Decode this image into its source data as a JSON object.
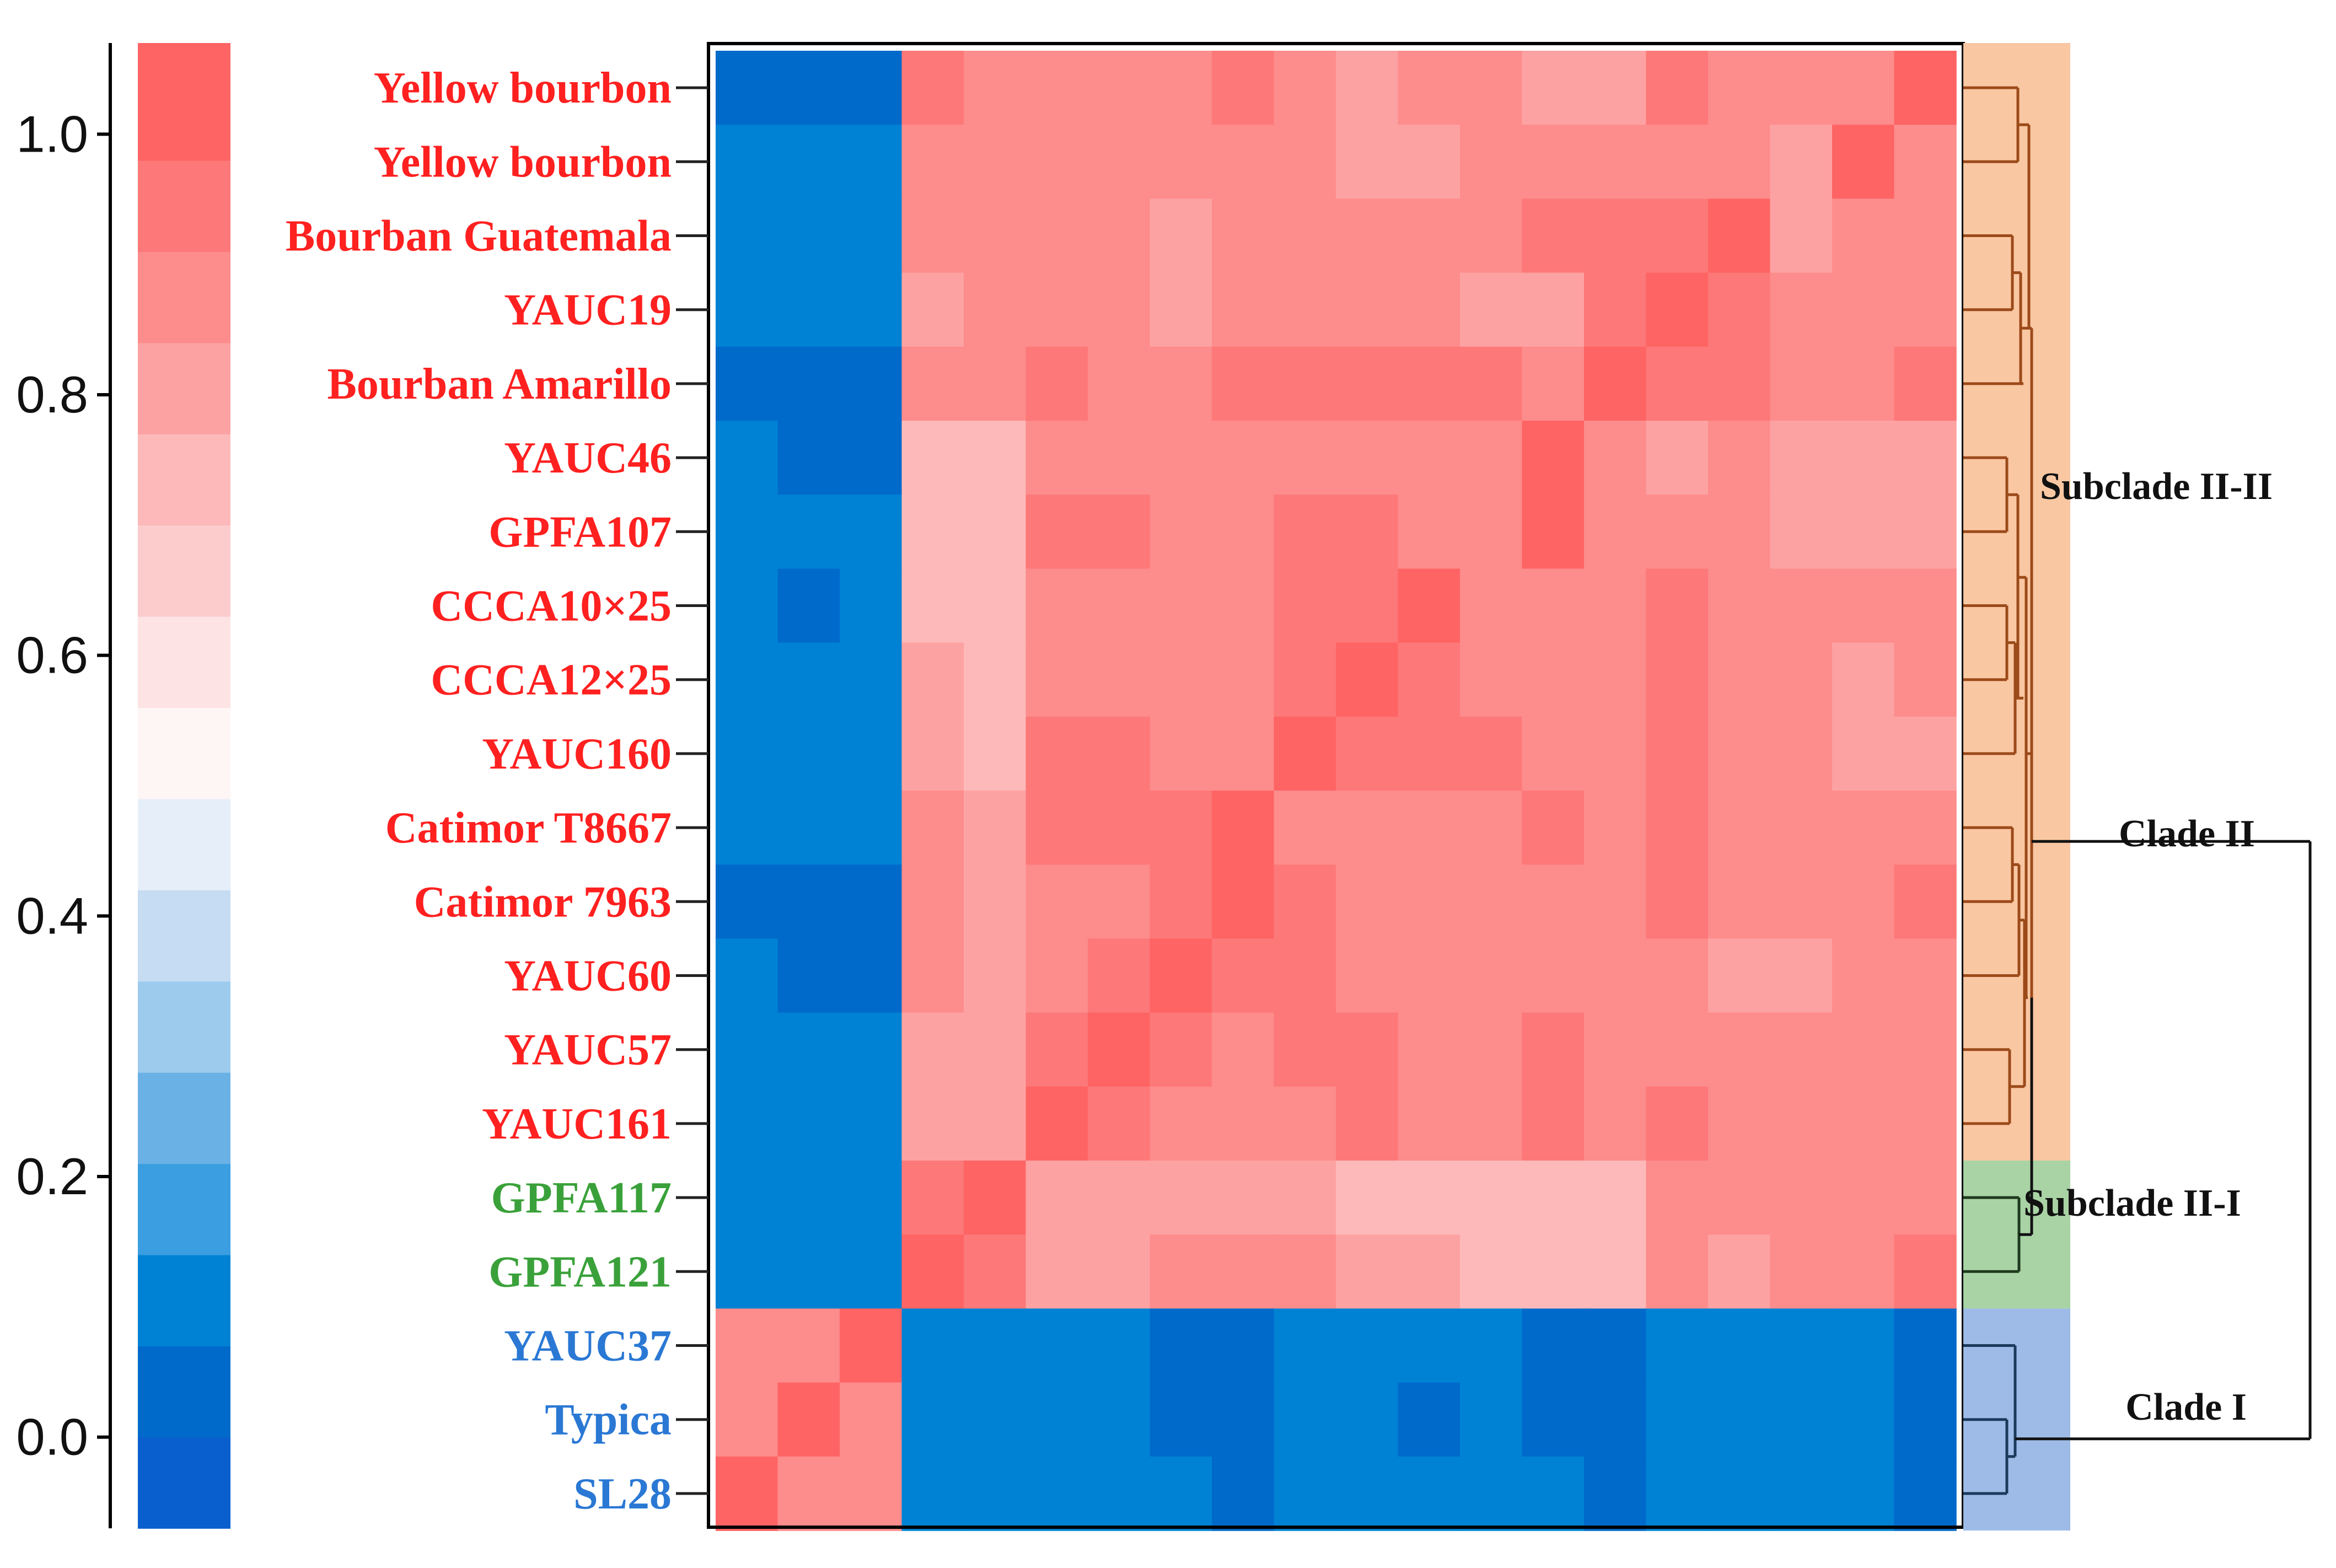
{
  "chart_data": {
    "type": "heatmap",
    "title": "",
    "colorbar": {
      "ticks": [
        0.0,
        0.2,
        0.4,
        0.6,
        0.8,
        1.0
      ],
      "tick_labels": [
        "0.0",
        "0.2",
        "0.4",
        "0.6",
        "0.8",
        "1.0"
      ],
      "range": [
        -0.07,
        1.07
      ],
      "steps": [
        {
          "from": -0.07,
          "to": 0.0,
          "color": "#0a5fcf"
        },
        {
          "from": 0.0,
          "to": 0.07,
          "color": "#006acb"
        },
        {
          "from": 0.07,
          "to": 0.14,
          "color": "#0082d4"
        },
        {
          "from": 0.14,
          "to": 0.21,
          "color": "#3a9ee0"
        },
        {
          "from": 0.21,
          "to": 0.28,
          "color": "#6ab2e6"
        },
        {
          "from": 0.28,
          "to": 0.35,
          "color": "#9ccbee"
        },
        {
          "from": 0.35,
          "to": 0.42,
          "color": "#c5dcf2"
        },
        {
          "from": 0.42,
          "to": 0.49,
          "color": "#e5eef9"
        },
        {
          "from": 0.49,
          "to": 0.56,
          "color": "#fef5f5"
        },
        {
          "from": 0.56,
          "to": 0.63,
          "color": "#fde3e4"
        },
        {
          "from": 0.63,
          "to": 0.7,
          "color": "#fccccd"
        },
        {
          "from": 0.7,
          "to": 0.77,
          "color": "#fdb9b9"
        },
        {
          "from": 0.77,
          "to": 0.84,
          "color": "#fda2a2"
        },
        {
          "from": 0.84,
          "to": 0.91,
          "color": "#fd8c8c"
        },
        {
          "from": 0.91,
          "to": 0.98,
          "color": "#fd7878"
        },
        {
          "from": 0.98,
          "to": 1.07,
          "color": "#fe6464"
        }
      ]
    },
    "rows": [
      {
        "label": "Yellow bourbon",
        "group": "Subclade II-II"
      },
      {
        "label": "Yellow bourbon",
        "group": "Subclade II-II"
      },
      {
        "label": "Bourban Guatemala",
        "group": "Subclade II-II"
      },
      {
        "label": "YAUC19",
        "group": "Subclade II-II"
      },
      {
        "label": "Bourban Amarillo",
        "group": "Subclade II-II"
      },
      {
        "label": "YAUC46",
        "group": "Subclade II-II"
      },
      {
        "label": "GPFA107",
        "group": "Subclade II-II"
      },
      {
        "label": "CCCA10×25",
        "group": "Subclade II-II"
      },
      {
        "label": "CCCA12×25",
        "group": "Subclade II-II"
      },
      {
        "label": "YAUC160",
        "group": "Subclade II-II"
      },
      {
        "label": "Catimor T8667",
        "group": "Subclade II-II"
      },
      {
        "label": "Catimor 7963",
        "group": "Subclade II-II"
      },
      {
        "label": "YAUC60",
        "group": "Subclade II-II"
      },
      {
        "label": "YAUC57",
        "group": "Subclade II-II"
      },
      {
        "label": "YAUC161",
        "group": "Subclade II-II"
      },
      {
        "label": "GPFA117",
        "group": "Subclade II-I"
      },
      {
        "label": "GPFA121",
        "group": "Subclade II-I"
      },
      {
        "label": "YAUC37",
        "group": "Clade I"
      },
      {
        "label": "Typica",
        "group": "Clade I"
      },
      {
        "label": "SL28",
        "group": "Clade I"
      }
    ],
    "values": [
      [
        0.0,
        0.0,
        0.0,
        0.93,
        0.86,
        0.86,
        0.86,
        0.86,
        0.93,
        0.86,
        0.78,
        0.86,
        0.86,
        0.78,
        0.78,
        0.93,
        0.86,
        0.86,
        0.86,
        1.0
      ],
      [
        0.07,
        0.07,
        0.07,
        0.86,
        0.86,
        0.86,
        0.86,
        0.86,
        0.86,
        0.86,
        0.78,
        0.78,
        0.86,
        0.86,
        0.86,
        0.86,
        0.86,
        0.78,
        1.0,
        0.86
      ],
      [
        0.07,
        0.07,
        0.07,
        0.86,
        0.86,
        0.86,
        0.86,
        0.78,
        0.86,
        0.86,
        0.86,
        0.86,
        0.86,
        0.93,
        0.93,
        0.93,
        1.0,
        0.78,
        0.86,
        0.86
      ],
      [
        0.07,
        0.07,
        0.07,
        0.78,
        0.86,
        0.86,
        0.86,
        0.78,
        0.86,
        0.86,
        0.86,
        0.86,
        0.78,
        0.78,
        0.93,
        1.0,
        0.93,
        0.86,
        0.86,
        0.86
      ],
      [
        0.0,
        0.0,
        0.0,
        0.86,
        0.86,
        0.93,
        0.86,
        0.86,
        0.93,
        0.93,
        0.93,
        0.93,
        0.93,
        0.86,
        1.0,
        0.93,
        0.93,
        0.86,
        0.86,
        0.93
      ],
      [
        0.07,
        0.0,
        0.0,
        0.71,
        0.71,
        0.86,
        0.86,
        0.86,
        0.86,
        0.86,
        0.86,
        0.86,
        0.86,
        1.0,
        0.86,
        0.78,
        0.86,
        0.78,
        0.78,
        0.78
      ],
      [
        0.07,
        0.07,
        0.07,
        0.71,
        0.71,
        0.93,
        0.93,
        0.86,
        0.86,
        0.93,
        0.93,
        0.86,
        0.86,
        1.0,
        0.86,
        0.86,
        0.86,
        0.78,
        0.78,
        0.78
      ],
      [
        0.07,
        0.0,
        0.07,
        0.71,
        0.71,
        0.86,
        0.86,
        0.86,
        0.86,
        0.93,
        0.93,
        1.0,
        0.86,
        0.86,
        0.86,
        0.93,
        0.86,
        0.86,
        0.86,
        0.86
      ],
      [
        0.07,
        0.07,
        0.07,
        0.78,
        0.71,
        0.86,
        0.86,
        0.86,
        0.86,
        0.93,
        1.0,
        0.93,
        0.86,
        0.86,
        0.86,
        0.93,
        0.86,
        0.86,
        0.78,
        0.86
      ],
      [
        0.07,
        0.07,
        0.07,
        0.78,
        0.71,
        0.93,
        0.93,
        0.86,
        0.86,
        1.0,
        0.93,
        0.93,
        0.93,
        0.86,
        0.86,
        0.93,
        0.86,
        0.86,
        0.78,
        0.78
      ],
      [
        0.07,
        0.07,
        0.07,
        0.86,
        0.78,
        0.93,
        0.93,
        0.93,
        1.0,
        0.86,
        0.86,
        0.86,
        0.86,
        0.93,
        0.86,
        0.93,
        0.86,
        0.86,
        0.86,
        0.86
      ],
      [
        0.0,
        0.0,
        0.0,
        0.86,
        0.78,
        0.86,
        0.86,
        0.93,
        1.0,
        0.93,
        0.86,
        0.86,
        0.86,
        0.86,
        0.86,
        0.93,
        0.86,
        0.86,
        0.86,
        0.93
      ],
      [
        0.07,
        0.0,
        0.0,
        0.86,
        0.78,
        0.86,
        0.93,
        1.0,
        0.93,
        0.93,
        0.86,
        0.86,
        0.86,
        0.86,
        0.86,
        0.86,
        0.78,
        0.78,
        0.86,
        0.86
      ],
      [
        0.07,
        0.07,
        0.07,
        0.78,
        0.78,
        0.93,
        1.0,
        0.93,
        0.86,
        0.93,
        0.93,
        0.86,
        0.86,
        0.93,
        0.86,
        0.86,
        0.86,
        0.86,
        0.86,
        0.86
      ],
      [
        0.07,
        0.07,
        0.07,
        0.78,
        0.78,
        1.0,
        0.93,
        0.86,
        0.86,
        0.86,
        0.93,
        0.86,
        0.86,
        0.93,
        0.86,
        0.93,
        0.86,
        0.86,
        0.86,
        0.86
      ],
      [
        0.07,
        0.07,
        0.07,
        0.93,
        1.0,
        0.78,
        0.78,
        0.78,
        0.78,
        0.78,
        0.71,
        0.71,
        0.71,
        0.71,
        0.71,
        0.86,
        0.86,
        0.86,
        0.86,
        0.86
      ],
      [
        0.07,
        0.07,
        0.07,
        1.0,
        0.93,
        0.78,
        0.78,
        0.86,
        0.86,
        0.86,
        0.78,
        0.78,
        0.71,
        0.71,
        0.71,
        0.86,
        0.78,
        0.86,
        0.86,
        0.93
      ],
      [
        0.86,
        0.86,
        1.0,
        0.07,
        0.07,
        0.07,
        0.07,
        0.0,
        0.0,
        0.07,
        0.07,
        0.07,
        0.07,
        0.0,
        0.0,
        0.07,
        0.07,
        0.07,
        0.07,
        0.0
      ],
      [
        0.86,
        1.0,
        0.86,
        0.07,
        0.07,
        0.07,
        0.07,
        0.0,
        0.0,
        0.07,
        0.07,
        0.0,
        0.07,
        0.0,
        0.0,
        0.07,
        0.07,
        0.07,
        0.07,
        0.0
      ],
      [
        1.0,
        0.86,
        0.86,
        0.07,
        0.07,
        0.07,
        0.07,
        0.07,
        0.0,
        0.07,
        0.07,
        0.07,
        0.07,
        0.07,
        0.0,
        0.07,
        0.07,
        0.07,
        0.07,
        0.0
      ]
    ],
    "groups": [
      {
        "name": "Subclade II-II",
        "rows": [
          0,
          14
        ],
        "band_color": "#f9c7a2",
        "label_color": "#ff2020",
        "dendro_color": "#9c4a1a"
      },
      {
        "name": "Subclade II-I",
        "rows": [
          15,
          16
        ],
        "band_color": "#a9d3a5",
        "label_color": "#3aa13a",
        "dendro_color": "#1e3a1e"
      },
      {
        "name": "Clade I",
        "rows": [
          17,
          19
        ],
        "band_color": "#9dbbe6",
        "label_color": "#2a78d4",
        "dendro_color": "#1c3a5c"
      }
    ],
    "clade_labels": [
      "Subclade II-II",
      "Clade II",
      "Subclade II-I",
      "Clade I"
    ]
  }
}
